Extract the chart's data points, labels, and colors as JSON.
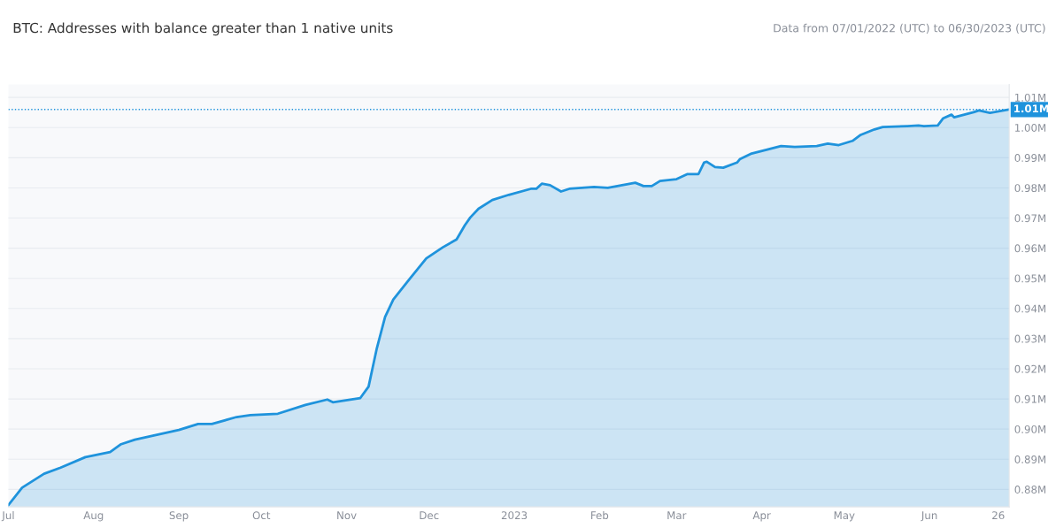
{
  "chart_data": {
    "type": "area",
    "title": "BTC: Addresses with balance greater than 1 native units",
    "subtitle": "Data from 07/01/2022 (UTC) to 06/30/2023 (UTC)",
    "x": [
      "2022-07-01",
      "2022-07-06",
      "2022-07-14",
      "2022-07-20",
      "2022-07-29",
      "2022-08-07",
      "2022-08-11",
      "2022-08-16",
      "2022-09-01",
      "2022-09-08",
      "2022-09-13",
      "2022-09-22",
      "2022-09-27",
      "2022-10-07",
      "2022-10-17",
      "2022-10-25",
      "2022-10-27",
      "2022-11-06",
      "2022-11-09",
      "2022-11-12",
      "2022-11-15",
      "2022-11-18",
      "2022-11-24",
      "2022-11-30",
      "2022-12-06",
      "2022-12-11",
      "2022-12-14",
      "2022-12-16",
      "2022-12-19",
      "2022-12-24",
      "2022-12-30",
      "2023-01-07",
      "2023-01-09",
      "2023-01-11",
      "2023-01-14",
      "2023-01-18",
      "2023-01-21",
      "2023-01-30",
      "2023-02-04",
      "2023-02-14",
      "2023-02-17",
      "2023-02-20",
      "2023-02-23",
      "2023-03-01",
      "2023-03-05",
      "2023-03-09",
      "2023-03-11",
      "2023-03-12",
      "2023-03-15",
      "2023-03-18",
      "2023-03-23",
      "2023-03-24",
      "2023-03-28",
      "2023-04-03",
      "2023-04-08",
      "2023-04-13",
      "2023-04-21",
      "2023-04-25",
      "2023-04-29",
      "2023-05-04",
      "2023-05-07",
      "2023-05-12",
      "2023-05-15",
      "2023-05-24",
      "2023-05-28",
      "2023-05-30",
      "2023-06-04",
      "2023-06-06",
      "2023-06-09",
      "2023-06-10",
      "2023-06-17",
      "2023-06-19",
      "2023-06-23",
      "2023-06-30"
    ],
    "series": [
      {
        "color": "#1f93dc",
        "values": [
          0.8748,
          0.8806,
          0.8852,
          0.8872,
          0.8907,
          0.8924,
          0.895,
          0.8965,
          0.8997,
          0.9017,
          0.9017,
          0.904,
          0.9046,
          0.9051,
          0.908,
          0.9098,
          0.9089,
          0.9103,
          0.9141,
          0.9268,
          0.9372,
          0.943,
          0.9499,
          0.9566,
          0.9603,
          0.9629,
          0.9676,
          0.9702,
          0.9731,
          0.976,
          0.9777,
          0.9797,
          0.9797,
          0.9814,
          0.9809,
          0.9788,
          0.9797,
          0.9803,
          0.98,
          0.9817,
          0.9806,
          0.9806,
          0.9823,
          0.9829,
          0.9846,
          0.9846,
          0.9884,
          0.9887,
          0.9869,
          0.9867,
          0.9884,
          0.9895,
          0.9913,
          0.9927,
          0.9939,
          0.9936,
          0.9939,
          0.9947,
          0.9942,
          0.9956,
          0.9976,
          0.9994,
          1.0002,
          1.0005,
          1.0007,
          1.0005,
          1.0007,
          1.0031,
          1.0043,
          1.0034,
          1.0051,
          1.0057,
          1.0049,
          1.006
        ]
      }
    ],
    "xlim": [
      "2022-07-01",
      "2023-06-30"
    ],
    "xticks": [
      {
        "value": "2022-07-01",
        "label": "Jul"
      },
      {
        "value": "2022-08-01",
        "label": "Aug"
      },
      {
        "value": "2022-09-01",
        "label": "Sep"
      },
      {
        "value": "2022-10-01",
        "label": "Oct"
      },
      {
        "value": "2022-11-01",
        "label": "Nov"
      },
      {
        "value": "2022-12-01",
        "label": "Dec"
      },
      {
        "value": "2023-01-01",
        "label": "2023"
      },
      {
        "value": "2023-02-01",
        "label": "Feb"
      },
      {
        "value": "2023-03-01",
        "label": "Mar"
      },
      {
        "value": "2023-04-01",
        "label": "Apr"
      },
      {
        "value": "2023-05-01",
        "label": "May"
      },
      {
        "value": "2023-06-01",
        "label": "Jun"
      },
      {
        "value": "2023-06-26",
        "label": "26"
      }
    ],
    "ylim": [
      0.8742,
      1.0143
    ],
    "yticks": [
      {
        "value": 0.88,
        "label": "0.88M"
      },
      {
        "value": 0.89,
        "label": "0.89M"
      },
      {
        "value": 0.9,
        "label": "0.90M"
      },
      {
        "value": 0.91,
        "label": "0.91M"
      },
      {
        "value": 0.92,
        "label": "0.92M"
      },
      {
        "value": 0.93,
        "label": "0.93M"
      },
      {
        "value": 0.94,
        "label": "0.94M"
      },
      {
        "value": 0.95,
        "label": "0.95M"
      },
      {
        "value": 0.96,
        "label": "0.96M"
      },
      {
        "value": 0.97,
        "label": "0.97M"
      },
      {
        "value": 0.98,
        "label": "0.98M"
      },
      {
        "value": 0.99,
        "label": "0.99M"
      },
      {
        "value": 1.0,
        "label": "1.00M"
      },
      {
        "value": 1.01,
        "label": "1.01M"
      }
    ],
    "ref_lines": [
      {
        "axis": "y",
        "value": 1.006,
        "label": "1.01M",
        "color": "#1f93dc",
        "line_style": "dotted"
      }
    ],
    "grid": "y",
    "legend": false
  }
}
